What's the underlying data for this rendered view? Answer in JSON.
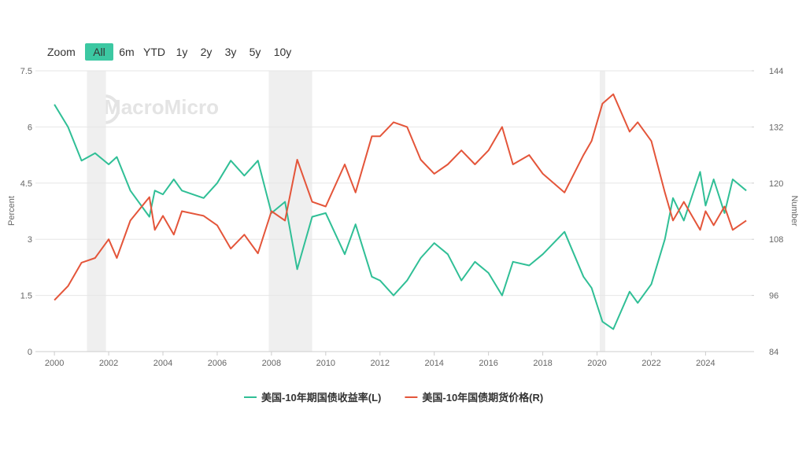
{
  "range_selector": {
    "label": "Zoom",
    "buttons": [
      "All",
      "6m",
      "YTD",
      "1y",
      "2y",
      "3y",
      "5y",
      "10y"
    ],
    "selected": 0
  },
  "chart_data": {
    "type": "line",
    "watermark": "MacroMicro",
    "y_label": "Percent",
    "y2_label": "Number",
    "xlim": [
      1999.3,
      2025.7
    ],
    "xticks": [
      2000,
      2002,
      2004,
      2006,
      2008,
      2010,
      2012,
      2014,
      2016,
      2018,
      2020,
      2022,
      2024
    ],
    "ylim": [
      0,
      7.5
    ],
    "yticks": [
      0,
      1.5,
      3,
      4.5,
      6,
      7.5
    ],
    "y2lim": [
      84,
      144
    ],
    "y2ticks": [
      84,
      96,
      108,
      120,
      132,
      144
    ],
    "grid": true,
    "legend": "bottom",
    "recessions": [
      [
        2001.2,
        2001.9
      ],
      [
        2007.9,
        2009.5
      ],
      [
        2020.1,
        2020.3
      ]
    ],
    "x": [
      2000.0,
      2000.5,
      2001.0,
      2001.5,
      2002.0,
      2002.3,
      2002.8,
      2003.5,
      2003.7,
      2004.0,
      2004.4,
      2004.7,
      2005.5,
      2006.0,
      2006.5,
      2007.0,
      2007.5,
      2008.0,
      2008.5,
      2008.95,
      2009.5,
      2010.0,
      2010.7,
      2011.1,
      2011.7,
      2012.0,
      2012.5,
      2013.0,
      2013.5,
      2014.0,
      2014.5,
      2015.0,
      2015.5,
      2016.0,
      2016.5,
      2016.9,
      2017.5,
      2018.0,
      2018.8,
      2019.5,
      2019.8,
      2020.2,
      2020.6,
      2021.2,
      2021.5,
      2022.0,
      2022.5,
      2022.8,
      2023.2,
      2023.8,
      2024.0,
      2024.3,
      2024.7,
      2025.0,
      2025.5
    ],
    "series": [
      {
        "name": "美国-10年期国债收益率(L)",
        "color": "#30bf96",
        "axis": "y",
        "values": [
          6.6,
          6.0,
          5.1,
          5.3,
          5.0,
          5.2,
          4.3,
          3.6,
          4.3,
          4.2,
          4.6,
          4.3,
          4.1,
          4.5,
          5.1,
          4.7,
          5.1,
          3.7,
          4.0,
          2.2,
          3.6,
          3.7,
          2.6,
          3.4,
          2.0,
          1.9,
          1.5,
          1.9,
          2.5,
          2.9,
          2.6,
          1.9,
          2.4,
          2.1,
          1.5,
          2.4,
          2.3,
          2.6,
          3.2,
          2.0,
          1.7,
          0.8,
          0.6,
          1.6,
          1.3,
          1.8,
          3.0,
          4.1,
          3.5,
          4.8,
          3.9,
          4.6,
          3.7,
          4.6,
          4.3
        ]
      },
      {
        "name": "美国-10年国债期货价格(R)",
        "color": "#e4553a",
        "axis": "y2",
        "values": [
          95,
          98,
          103,
          104,
          108,
          104,
          112,
          117,
          110,
          113,
          109,
          114,
          113,
          111,
          106,
          109,
          105,
          114,
          112,
          125,
          116,
          115,
          124,
          118,
          130,
          130,
          133,
          132,
          125,
          122,
          124,
          127,
          124,
          127,
          132,
          124,
          126,
          122,
          118,
          126,
          129,
          137,
          139,
          131,
          133,
          129,
          118,
          112,
          116,
          110,
          114,
          111,
          115,
          110,
          112
        ]
      }
    ]
  }
}
